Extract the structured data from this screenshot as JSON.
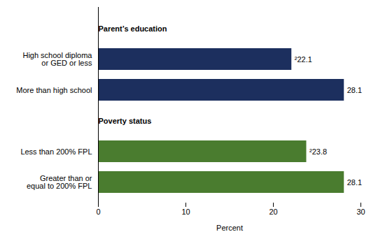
{
  "chart_data": {
    "type": "bar",
    "orientation": "horizontal",
    "xlabel": "Percent",
    "categories": [
      "Greater than or\nequal to 200% FPL",
      "Less than 200% FPL",
      "More than high school",
      "High school diploma\nor GED or less"
    ],
    "groups": [
      "Poverty status",
      "Poverty status",
      "Parent’s education",
      "Parent’s education"
    ],
    "values": [
      28.1,
      23.8,
      28.1,
      22.1
    ],
    "value_labels": [
      "28.1",
      "²23.8",
      "28.1",
      "²22.1"
    ],
    "data_labels": true,
    "colors": [
      "#4a7c2f",
      "#4a7c2f",
      "#1c2f5e",
      "#1c2f5e"
    ],
    "xlim": [
      0,
      30
    ],
    "xticks": [
      0,
      10,
      20,
      30
    ],
    "grid": false
  }
}
